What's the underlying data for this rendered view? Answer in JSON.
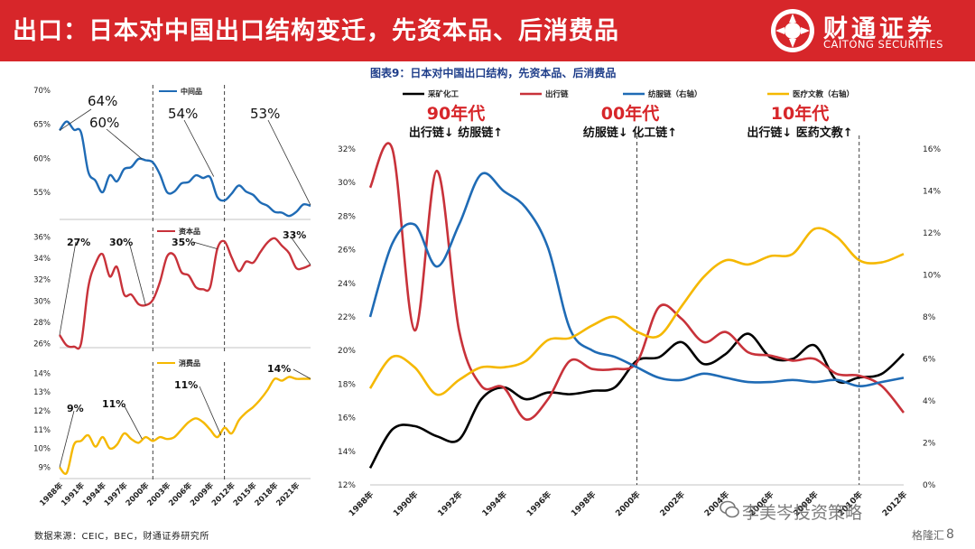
{
  "header": {
    "title": "出口：日本对中国出口结构变迁，先资本品、后消费品",
    "logo_cn": "财通证券",
    "logo_en": "CAITONG SECURITIES",
    "color": "#d7262a"
  },
  "figure_title": "图表9：日本对中国出口结构，先资本品、后消费品",
  "footer": {
    "source": "数据来源：CEIC，BEC，财通证券研究所",
    "watermark": "李美岑投资策略",
    "brand": "格隆汇",
    "page": "8"
  },
  "chart_data": [
    {
      "type": "line",
      "series": [
        {
          "name": "中间品",
          "color": "#1f6bb5",
          "values": [
            64.1,
            65.4,
            64.2,
            63.8,
            58.0,
            56.7,
            55.0,
            57.5,
            56.6,
            58.4,
            58.7,
            59.9,
            59.7,
            59.4,
            57.6,
            55.0,
            55.1,
            56.3,
            56.5,
            57.5,
            57.1,
            57.2,
            54.3,
            53.8,
            54.8,
            56.0,
            55.1,
            54.6,
            53.5,
            53.0,
            52.1,
            52.0,
            51.5,
            52.1,
            53.2,
            53.0
          ]
        }
      ],
      "x_start": 1988,
      "x_end": 2023,
      "x_ticks": [
        "1988年",
        "1991年",
        "1994年",
        "1997年",
        "2000年",
        "2003年",
        "2006年",
        "2009年",
        "2012年",
        "2015年",
        "2018年",
        "2021年"
      ],
      "y_ticks": [
        "55%",
        "60%",
        "65%",
        "70%"
      ],
      "ylim": [
        51,
        70
      ],
      "annotations": [
        "64%",
        "60%",
        "54%",
        "53%"
      ],
      "dividers": [
        2001,
        2011
      ]
    },
    {
      "type": "line",
      "series": [
        {
          "name": "资本品",
          "color": "#c8323a",
          "values": [
            26.8,
            25.8,
            25.7,
            26.0,
            31.3,
            33.5,
            34.4,
            32.3,
            33.2,
            30.6,
            30.6,
            29.7,
            29.6,
            30.1,
            31.8,
            34.2,
            34.3,
            32.7,
            32.4,
            31.3,
            31.1,
            31.3,
            34.9,
            35.6,
            34.1,
            32.8,
            33.7,
            33.6,
            34.6,
            35.5,
            35.9,
            35.2,
            34.5,
            33.1,
            33.1,
            33.4
          ]
        }
      ],
      "x_start": 1988,
      "x_end": 2023,
      "y_ticks": [
        "26%",
        "28%",
        "30%",
        "32%",
        "34%",
        "36%"
      ],
      "ylim": [
        25.6,
        36.4
      ],
      "annotations": [
        "27%",
        "30%",
        "35%",
        "33%"
      ],
      "dividers": [
        2001,
        2011
      ]
    },
    {
      "type": "line",
      "series": [
        {
          "name": "消费品",
          "color": "#f5b800",
          "values": [
            9.0,
            8.7,
            10.2,
            10.4,
            10.7,
            10.1,
            10.6,
            10.0,
            10.2,
            10.8,
            10.5,
            10.3,
            10.6,
            10.4,
            10.6,
            10.5,
            10.6,
            11.0,
            11.4,
            11.6,
            11.4,
            11.0,
            10.6,
            11.1,
            10.8,
            11.5,
            11.9,
            12.2,
            12.6,
            13.1,
            13.7,
            13.6,
            13.8,
            13.7,
            13.7,
            13.7
          ]
        }
      ],
      "x_start": 1988,
      "x_end": 2023,
      "y_ticks": [
        "9%",
        "10%",
        "11%",
        "12%",
        "13%",
        "14%"
      ],
      "ylim": [
        8.4,
        14.3
      ],
      "annotations": [
        "9%",
        "11%",
        "11%",
        "14%"
      ],
      "dividers": [
        2001,
        2011
      ]
    },
    {
      "type": "line",
      "title": "图表9：日本对中国出口结构，先资本品、后消费品",
      "series": [
        {
          "name": "采矿化工",
          "color": "#000000",
          "axis": "left",
          "values": [
            13.0,
            15.3,
            15.5,
            14.9,
            14.7,
            17.1,
            17.8,
            17.1,
            17.5,
            17.4,
            17.6,
            17.8,
            19.4,
            19.6,
            20.5,
            19.2,
            19.8,
            21.0,
            19.6,
            19.5,
            20.3,
            18.2,
            18.4,
            18.6,
            19.8
          ]
        },
        {
          "name": "出行链",
          "color": "#c8323a",
          "axis": "left",
          "values": [
            29.7,
            32.0,
            21.2,
            30.7,
            21.2,
            17.9,
            17.8,
            15.9,
            17.1,
            19.4,
            18.9,
            18.9,
            19.3,
            22.6,
            21.9,
            20.5,
            21.1,
            19.9,
            19.7,
            19.4,
            19.5,
            18.6,
            18.5,
            17.9,
            16.3
          ]
        },
        {
          "name": "纺服链（右轴）",
          "color": "#1f6bb5",
          "axis": "right",
          "values": [
            8.0,
            11.5,
            12.4,
            10.4,
            12.4,
            14.8,
            14.0,
            13.2,
            11.3,
            7.4,
            6.4,
            6.1,
            5.6,
            5.1,
            5.0,
            5.3,
            5.1,
            4.9,
            4.9,
            5.0,
            4.9,
            5.0,
            4.7,
            4.9,
            5.1
          ]
        },
        {
          "name": "医疗文教（右轴）",
          "color": "#f5b800",
          "axis": "right",
          "values": [
            4.6,
            6.1,
            5.6,
            4.3,
            5.0,
            5.6,
            5.6,
            5.9,
            6.9,
            7.0,
            7.6,
            8.0,
            7.3,
            7.1,
            8.5,
            9.9,
            10.7,
            10.5,
            10.9,
            11.0,
            12.2,
            11.8,
            10.7,
            10.6,
            11.0
          ]
        }
      ],
      "x_start": 1988,
      "x_end": 2012,
      "x_ticks": [
        "1988年",
        "1990年",
        "1992年",
        "1994年",
        "1996年",
        "1998年",
        "2000年",
        "2002年",
        "2004年",
        "2006年",
        "2008年",
        "2010年",
        "2012年"
      ],
      "y_left_ticks": [
        "12%",
        "14%",
        "16%",
        "18%",
        "20%",
        "22%",
        "24%",
        "26%",
        "28%",
        "30%",
        "32%"
      ],
      "y_right_ticks": [
        "0%",
        "2%",
        "4%",
        "6%",
        "8%",
        "10%",
        "12%",
        "14%",
        "16%"
      ],
      "ylim": [
        12,
        32
      ],
      "y2lim": [
        0,
        16
      ],
      "dividers": [
        2000,
        2010
      ],
      "decades": [
        {
          "label": "90年代",
          "text": "出行链↓ 纺服链↑"
        },
        {
          "label": "00年代",
          "text": "纺服链↓ 化工链↑"
        },
        {
          "label": "10年代",
          "text": "出行链↓ 医药文教↑"
        }
      ]
    }
  ]
}
